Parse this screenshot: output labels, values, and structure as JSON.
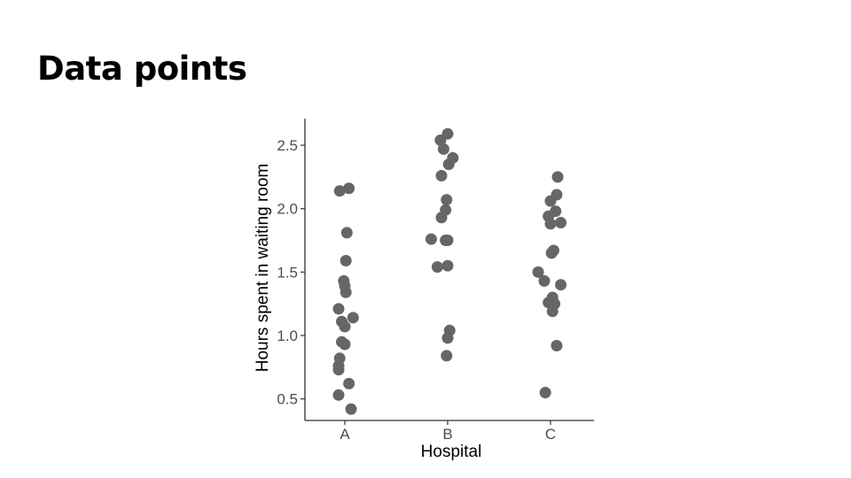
{
  "slide": {
    "title": "Data points"
  },
  "chart_data": {
    "type": "scatter",
    "title": "",
    "xlabel": "Hospital",
    "ylabel": "Hours spent in waiting room",
    "categories": [
      "A",
      "B",
      "C"
    ],
    "ylim": [
      0.33,
      2.71
    ],
    "yticks": [
      "0.5",
      "1.0",
      "1.5",
      "2.0",
      "2.5"
    ],
    "grid": false,
    "point_color": "#666666",
    "axis_color": "#333333",
    "points": [
      {
        "x": "A",
        "jitter": -0.05,
        "y": 2.14
      },
      {
        "x": "A",
        "jitter": 0.04,
        "y": 2.16
      },
      {
        "x": "A",
        "jitter": 0.02,
        "y": 1.81
      },
      {
        "x": "A",
        "jitter": 0.01,
        "y": 1.59
      },
      {
        "x": "A",
        "jitter": -0.01,
        "y": 1.43
      },
      {
        "x": "A",
        "jitter": 0.0,
        "y": 1.39
      },
      {
        "x": "A",
        "jitter": 0.01,
        "y": 1.34
      },
      {
        "x": "A",
        "jitter": -0.06,
        "y": 1.21
      },
      {
        "x": "A",
        "jitter": 0.08,
        "y": 1.14
      },
      {
        "x": "A",
        "jitter": -0.03,
        "y": 1.11
      },
      {
        "x": "A",
        "jitter": 0.0,
        "y": 1.07
      },
      {
        "x": "A",
        "jitter": -0.03,
        "y": 0.95
      },
      {
        "x": "A",
        "jitter": 0.0,
        "y": 0.93
      },
      {
        "x": "A",
        "jitter": -0.05,
        "y": 0.82
      },
      {
        "x": "A",
        "jitter": -0.06,
        "y": 0.76
      },
      {
        "x": "A",
        "jitter": -0.06,
        "y": 0.73
      },
      {
        "x": "A",
        "jitter": 0.04,
        "y": 0.62
      },
      {
        "x": "A",
        "jitter": -0.06,
        "y": 0.53
      },
      {
        "x": "A",
        "jitter": 0.06,
        "y": 0.42
      },
      {
        "x": "B",
        "jitter": 0.0,
        "y": 2.59
      },
      {
        "x": "B",
        "jitter": -0.07,
        "y": 2.54
      },
      {
        "x": "B",
        "jitter": -0.04,
        "y": 2.47
      },
      {
        "x": "B",
        "jitter": 0.05,
        "y": 2.4
      },
      {
        "x": "B",
        "jitter": 0.01,
        "y": 2.35
      },
      {
        "x": "B",
        "jitter": -0.06,
        "y": 2.26
      },
      {
        "x": "B",
        "jitter": -0.01,
        "y": 2.07
      },
      {
        "x": "B",
        "jitter": -0.02,
        "y": 1.99
      },
      {
        "x": "B",
        "jitter": -0.06,
        "y": 1.93
      },
      {
        "x": "B",
        "jitter": -0.16,
        "y": 1.76
      },
      {
        "x": "B",
        "jitter": -0.02,
        "y": 1.75
      },
      {
        "x": "B",
        "jitter": 0.0,
        "y": 1.75
      },
      {
        "x": "B",
        "jitter": -0.1,
        "y": 1.54
      },
      {
        "x": "B",
        "jitter": 0.0,
        "y": 1.55
      },
      {
        "x": "B",
        "jitter": 0.02,
        "y": 1.04
      },
      {
        "x": "B",
        "jitter": 0.0,
        "y": 0.98
      },
      {
        "x": "B",
        "jitter": -0.01,
        "y": 0.84
      },
      {
        "x": "C",
        "jitter": 0.07,
        "y": 2.25
      },
      {
        "x": "C",
        "jitter": 0.06,
        "y": 2.11
      },
      {
        "x": "C",
        "jitter": 0.0,
        "y": 2.06
      },
      {
        "x": "C",
        "jitter": 0.05,
        "y": 1.98
      },
      {
        "x": "C",
        "jitter": -0.02,
        "y": 1.94
      },
      {
        "x": "C",
        "jitter": 0.1,
        "y": 1.89
      },
      {
        "x": "C",
        "jitter": 0.0,
        "y": 1.88
      },
      {
        "x": "C",
        "jitter": 0.03,
        "y": 1.67
      },
      {
        "x": "C",
        "jitter": 0.01,
        "y": 1.65
      },
      {
        "x": "C",
        "jitter": -0.12,
        "y": 1.5
      },
      {
        "x": "C",
        "jitter": -0.06,
        "y": 1.43
      },
      {
        "x": "C",
        "jitter": 0.1,
        "y": 1.4
      },
      {
        "x": "C",
        "jitter": 0.02,
        "y": 1.3
      },
      {
        "x": "C",
        "jitter": -0.02,
        "y": 1.26
      },
      {
        "x": "C",
        "jitter": 0.04,
        "y": 1.25
      },
      {
        "x": "C",
        "jitter": 0.02,
        "y": 1.19
      },
      {
        "x": "C",
        "jitter": 0.06,
        "y": 0.92
      },
      {
        "x": "C",
        "jitter": -0.05,
        "y": 0.55
      }
    ]
  }
}
